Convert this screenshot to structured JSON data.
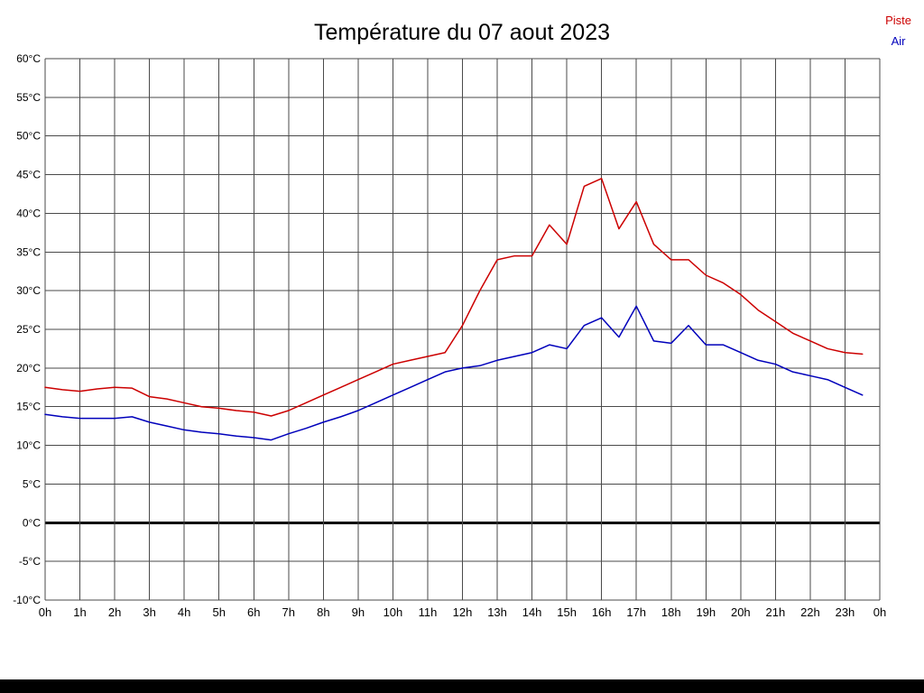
{
  "title": "Température du 07 aout 2023",
  "legend": {
    "piste": "Piste",
    "air": "Air"
  },
  "chart_data": {
    "type": "line",
    "title": "Température du 07 aout 2023",
    "xlabel": "",
    "ylabel": "",
    "xlim": [
      0,
      24
    ],
    "ylim": [
      -10,
      60
    ],
    "grid": true,
    "legend_position": "top-right",
    "colors": {
      "grid": "#4a4a4a",
      "zero_line": "#000000",
      "background": "#ffffff"
    },
    "x_ticks": [
      "0h",
      "1h",
      "2h",
      "3h",
      "4h",
      "5h",
      "6h",
      "7h",
      "8h",
      "9h",
      "10h",
      "11h",
      "12h",
      "13h",
      "14h",
      "15h",
      "16h",
      "17h",
      "18h",
      "19h",
      "20h",
      "21h",
      "22h",
      "23h",
      "0h"
    ],
    "y_ticks": [
      "60°C",
      "55°C",
      "50°C",
      "45°C",
      "40°C",
      "35°C",
      "30°C",
      "25°C",
      "20°C",
      "15°C",
      "10°C",
      "5°C",
      "0°C",
      "-5°C",
      "-10°C"
    ],
    "x": [
      0,
      0.5,
      1,
      1.5,
      2,
      2.5,
      3,
      3.5,
      4,
      4.5,
      5,
      5.5,
      6,
      6.5,
      7,
      7.5,
      8,
      8.5,
      9,
      9.5,
      10,
      10.5,
      11,
      11.5,
      12,
      12.5,
      13,
      13.5,
      14,
      14.5,
      15,
      15.5,
      16,
      16.5,
      17,
      17.5,
      18,
      18.5,
      19,
      19.5,
      20,
      20.5,
      21,
      21.5,
      22,
      22.5,
      23,
      23.5
    ],
    "series": [
      {
        "name": "Piste",
        "color": "#cc0000",
        "values": [
          17.5,
          17.2,
          17.0,
          17.3,
          17.5,
          17.4,
          16.3,
          16.0,
          15.5,
          15.0,
          14.8,
          14.5,
          14.3,
          13.8,
          14.5,
          15.5,
          16.5,
          17.5,
          18.5,
          19.5,
          20.5,
          21.0,
          21.5,
          22.0,
          25.5,
          30.0,
          34.0,
          34.5,
          34.5,
          38.5,
          36.0,
          43.5,
          44.5,
          38.0,
          41.5,
          36.0,
          34.0,
          34.0,
          32.0,
          31.0,
          29.5,
          27.5,
          26.0,
          24.5,
          23.5,
          22.5,
          22.0,
          21.8
        ]
      },
      {
        "name": "Air",
        "color": "#0000bb",
        "values": [
          14.0,
          13.7,
          13.5,
          13.5,
          13.5,
          13.7,
          13.0,
          12.5,
          12.0,
          11.7,
          11.5,
          11.2,
          11.0,
          10.7,
          11.5,
          12.2,
          13.0,
          13.7,
          14.5,
          15.5,
          16.5,
          17.5,
          18.5,
          19.5,
          20.0,
          20.3,
          21.0,
          21.5,
          22.0,
          23.0,
          22.5,
          25.5,
          26.5,
          24.0,
          28.0,
          23.5,
          23.2,
          25.5,
          23.0,
          23.0,
          22.0,
          21.0,
          20.5,
          19.5,
          19.0,
          18.5,
          17.5,
          16.5
        ]
      }
    ]
  }
}
